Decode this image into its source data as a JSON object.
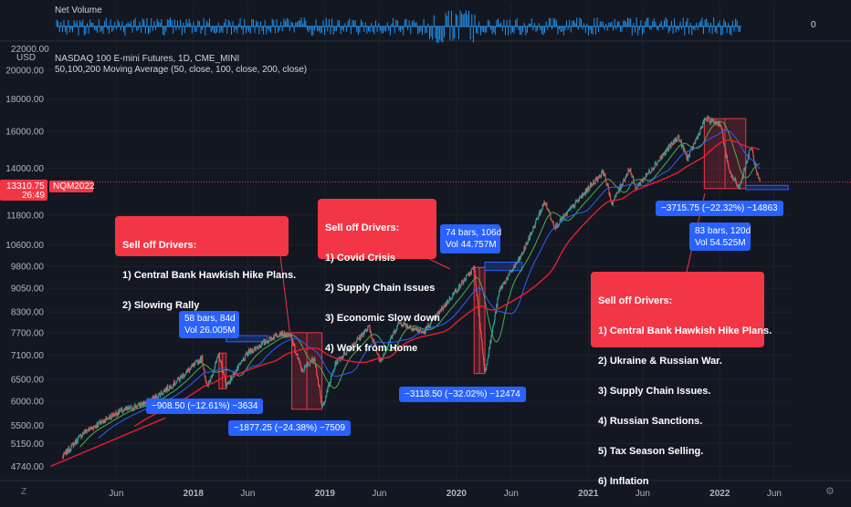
{
  "indicator": {
    "label": "Net Volume",
    "value": "0"
  },
  "header": {
    "price_currency": "22000.00",
    "currency": "USD",
    "symbol_title": "NASDAQ 100 E-mini Futures, 1D, CME_MINI",
    "ma_title": "50,100,200 Moving Average (50, close, 100, close, 200, close)"
  },
  "price_tag": {
    "price": "13310.75",
    "countdown": "26:49",
    "symbol": "NQM2022"
  },
  "callouts": {
    "c2018": [
      "Sell off Drivers:",
      "1) Central Bank Hawkish Hike Plans.",
      "2) Slowing Rally"
    ],
    "c2020": [
      "Sell off Drivers:",
      "1) Covid Crisis",
      "2) Supply Chain Issues",
      "3) Economic Slow down",
      "4) Work from Home"
    ],
    "c2022": [
      "Sell off Drivers:",
      "1) Central Bank Hawkish Hike Plans.",
      "2) Ukraine & Russian War.",
      "3) Supply Chain Issues.",
      "4) Russian Sanctions.",
      "5) Tax Season Selling.",
      "6) Inflation"
    ]
  },
  "measures": {
    "m2018a_top": "58 bars, 84d",
    "m2018a_vol": "Vol 26.005M",
    "m2018a_bottom": "−908.50 (−12.61%) −3634",
    "m2018b_bottom": "−1877.25 (−24.38%) −7509",
    "m2020_top": "74 bars, 106d",
    "m2020_vol": "Vol 44.757M",
    "m2020_bottom": "−3118.50 (−32.02%) −12474",
    "m2022_bottom": "−3715.75 (−22.32%) −14863",
    "m2022_top": "83 bars, 120d",
    "m2022_vol": "Vol 54.525M"
  },
  "icons": {
    "zoom": "Z",
    "logo": "tradingview-logo",
    "settings": "gear-icon"
  },
  "colors": {
    "bg": "#131722",
    "up": "#26a69a",
    "down": "#ef5350",
    "ma50": "#4caf50",
    "ma100": "#2962ff",
    "ma200": "#e91e2f",
    "callout": "#f23645",
    "measure": "#2962ff"
  },
  "chart_data": {
    "type": "candlestick",
    "title": "NASDAQ 100 E-mini Futures, 1D, CME_MINI",
    "y_scale": "log",
    "y_ticks": [
      22000,
      20000,
      18000,
      16000,
      14000,
      11800,
      10600,
      9800,
      9050,
      8300,
      7700,
      7100,
      6500,
      6000,
      5500,
      5150,
      4740
    ],
    "ylim": [
      4500,
      22000
    ],
    "x_ticks": [
      "Jun",
      "2018",
      "Jun",
      "2019",
      "Jun",
      "2020",
      "Jun",
      "2021",
      "Jun",
      "2022",
      "Jun"
    ],
    "x_tick_dates": [
      "2017-06-01",
      "2018-01-01",
      "2018-06-01",
      "2019-01-01",
      "2019-06-01",
      "2020-01-01",
      "2020-06-01",
      "2021-01-01",
      "2021-06-01",
      "2022-01-01",
      "2022-06-01"
    ],
    "close_path": [
      [
        "2017-01-02",
        4900
      ],
      [
        "2017-03-01",
        5350
      ],
      [
        "2017-06-01",
        5750
      ],
      [
        "2017-09-01",
        6000
      ],
      [
        "2017-11-01",
        6350
      ],
      [
        "2018-01-25",
        7020
      ],
      [
        "2018-02-08",
        6300
      ],
      [
        "2018-03-13",
        7100
      ],
      [
        "2018-04-02",
        6350
      ],
      [
        "2018-06-01",
        7150
      ],
      [
        "2018-08-29",
        7700
      ],
      [
        "2018-09-28",
        7600
      ],
      [
        "2018-10-29",
        6700
      ],
      [
        "2018-12-03",
        7050
      ],
      [
        "2018-12-24",
        5850
      ],
      [
        "2019-01-31",
        6900
      ],
      [
        "2019-05-03",
        7850
      ],
      [
        "2019-06-03",
        6950
      ],
      [
        "2019-07-26",
        8000
      ],
      [
        "2019-10-01",
        7700
      ],
      [
        "2020-02-19",
        9750
      ],
      [
        "2020-03-20",
        6650
      ],
      [
        "2020-04-30",
        9000
      ],
      [
        "2020-06-30",
        10200
      ],
      [
        "2020-09-02",
        12400
      ],
      [
        "2020-10-01",
        11300
      ],
      [
        "2021-02-12",
        13850
      ],
      [
        "2021-03-08",
        12300
      ],
      [
        "2021-04-26",
        14000
      ],
      [
        "2021-05-12",
        13000
      ],
      [
        "2021-09-07",
        15700
      ],
      [
        "2021-10-04",
        14500
      ],
      [
        "2021-11-22",
        16750
      ],
      [
        "2022-01-03",
        16450
      ],
      [
        "2022-01-27",
        13800
      ],
      [
        "2022-02-24",
        13050
      ],
      [
        "2022-03-29",
        15150
      ],
      [
        "2022-04-14",
        13650
      ],
      [
        "2022-04-22",
        13310.75
      ]
    ],
    "moving_averages": [
      {
        "name": "MA 50",
        "period": 50
      },
      {
        "name": "MA 100",
        "period": 100
      },
      {
        "name": "MA 200",
        "period": 200
      }
    ],
    "last_price": 13310.75,
    "indicator": {
      "name": "Net Volume",
      "baseline": 0
    }
  }
}
